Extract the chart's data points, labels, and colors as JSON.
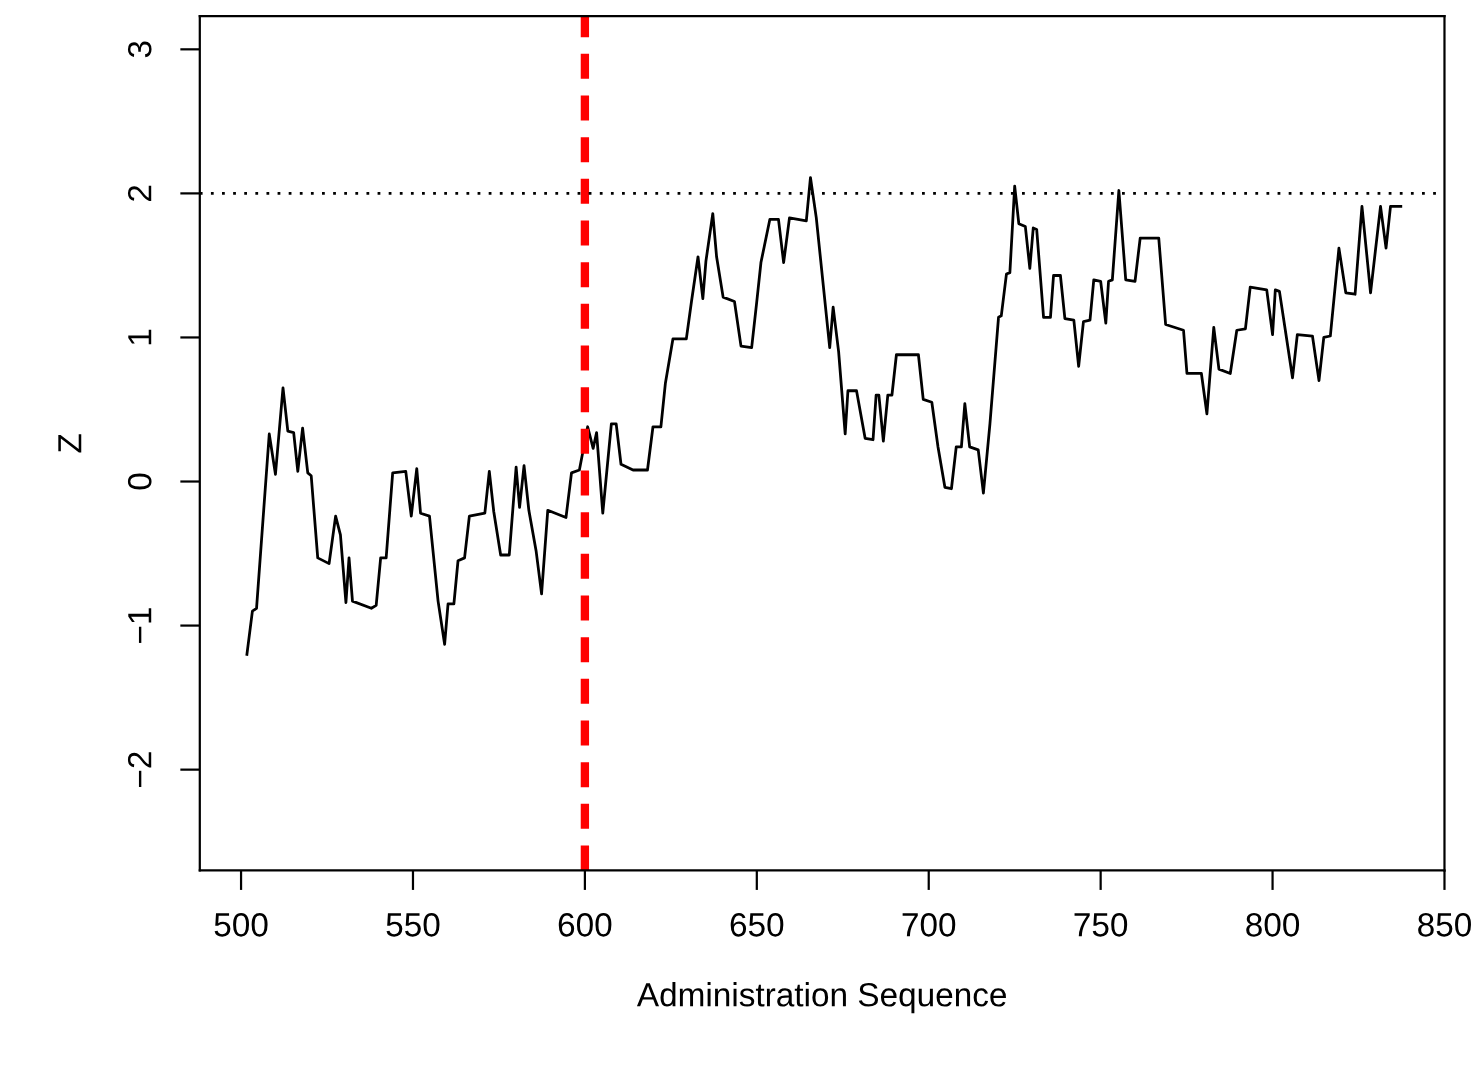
{
  "chart_data": {
    "type": "line",
    "xlabel": "Administration Sequence",
    "ylabel": "Z",
    "xlim": [
      488,
      850
    ],
    "ylim": [
      -2.7,
      3.23
    ],
    "xticks": [
      500,
      550,
      600,
      650,
      700,
      750,
      800,
      850
    ],
    "yticks": [
      {
        "value": -2,
        "label": "−2"
      },
      {
        "value": -1,
        "label": "−1"
      },
      0,
      1,
      2,
      3
    ],
    "grid": false,
    "legend": false,
    "marker": "none",
    "line_style": "solid",
    "ref_lines": [
      {
        "axis": "x",
        "value": 600,
        "label": null,
        "color": "#ff0000",
        "line_style": "dashed"
      },
      {
        "axis": "y",
        "value": 2,
        "label": null,
        "color": "#000000",
        "line_style": "dotted"
      }
    ],
    "series": [
      {
        "color": "#000000",
        "x": [
          501.7,
          503.3,
          504.5,
          508.2,
          510,
          512.2,
          513.6,
          515.3,
          516.5,
          517.9,
          519.4,
          520.4,
          522.3,
          525.6,
          527.5,
          528.9,
          530.5,
          531.4,
          532.4,
          537.9,
          539.3,
          540.6,
          542.2,
          544.1,
          547.9,
          549.5,
          551.1,
          552.2,
          554.8,
          557.3,
          559.2,
          560.2,
          561.9,
          563.1,
          565,
          566.4,
          570.9,
          572.2,
          573.5,
          575.5,
          578,
          580,
          581,
          582.3,
          583.7,
          585.8,
          587.4,
          589.2,
          594.5,
          596.1,
          598.4,
          600.8,
          602.4,
          603.4,
          605.2,
          607.7,
          609.1,
          610.5,
          614,
          618.2,
          619.8,
          622.1,
          623.4,
          625.6,
          629.5,
          631,
          632.9,
          634.3,
          635.2,
          637.2,
          638.3,
          640.2,
          643.5,
          645.4,
          648.5,
          649.9,
          651.2,
          653.8,
          656.3,
          657.8,
          659.5,
          664.4,
          665.6,
          667.3,
          669.9,
          671.2,
          672.2,
          673.8,
          675.7,
          676.5,
          679,
          681.5,
          683.8,
          684.7,
          685.5,
          686.8,
          688.1,
          689.3,
          690.6,
          697,
          698.4,
          700.9,
          702.7,
          704.7,
          706.6,
          708,
          709.5,
          710.5,
          711.9,
          714.4,
          715.9,
          717.8,
          720.3,
          721.1,
          722.6,
          723.6,
          725,
          726.2,
          728.1,
          729.4,
          730.4,
          731.4,
          733.4,
          735.4,
          736.3,
          738.3,
          739.6,
          742.2,
          743.6,
          745,
          746.9,
          748,
          750,
          751.5,
          752.3,
          753.4,
          755.3,
          757.3,
          760,
          761.5,
          766.9,
          768.9,
          774.1,
          775.1,
          779.3,
          780.9,
          782.9,
          784.4,
          787.7,
          789.6,
          792.1,
          793.5,
          798.3,
          800,
          800.8,
          802,
          803.9,
          805.8,
          807.2,
          811.6,
          813.5,
          814.9,
          816.8,
          819.3,
          821.3,
          824,
          826,
          828.5,
          829.9,
          831.4,
          833,
          834.3,
          837.3
        ],
        "values": [
          -1.2,
          -0.9,
          -0.88,
          0.33,
          0.05,
          0.65,
          0.35,
          0.34,
          0.07,
          0.37,
          0.06,
          0.04,
          -0.53,
          -0.57,
          -0.24,
          -0.37,
          -0.84,
          -0.53,
          -0.83,
          -0.88,
          -0.86,
          -0.53,
          -0.53,
          0.06,
          0.07,
          -0.24,
          0.09,
          -0.22,
          -0.24,
          -0.83,
          -1.13,
          -0.85,
          -0.85,
          -0.55,
          -0.53,
          -0.24,
          -0.22,
          0.07,
          -0.21,
          -0.51,
          -0.51,
          0.1,
          -0.18,
          0.11,
          -0.2,
          -0.48,
          -0.78,
          -0.2,
          -0.25,
          0.06,
          0.08,
          0.38,
          0.23,
          0.34,
          -0.22,
          0.4,
          0.4,
          0.12,
          0.08,
          0.08,
          0.38,
          0.38,
          0.68,
          0.99,
          0.99,
          1.25,
          1.56,
          1.27,
          1.53,
          1.86,
          1.56,
          1.28,
          1.25,
          0.94,
          0.93,
          1.23,
          1.52,
          1.82,
          1.82,
          1.52,
          1.83,
          1.81,
          2.11,
          1.83,
          1.23,
          0.93,
          1.21,
          0.9,
          0.33,
          0.63,
          0.63,
          0.3,
          0.29,
          0.6,
          0.6,
          0.28,
          0.6,
          0.6,
          0.88,
          0.88,
          0.57,
          0.55,
          0.24,
          -0.04,
          -0.05,
          0.24,
          0.24,
          0.54,
          0.24,
          0.22,
          -0.08,
          0.4,
          1.14,
          1.15,
          1.44,
          1.45,
          2.05,
          1.79,
          1.77,
          1.48,
          1.76,
          1.75,
          1.14,
          1.14,
          1.43,
          1.43,
          1.13,
          1.12,
          0.8,
          1.11,
          1.12,
          1.4,
          1.39,
          1.1,
          1.39,
          1.4,
          2.02,
          1.4,
          1.39,
          1.69,
          1.69,
          1.09,
          1.05,
          0.75,
          0.75,
          0.47,
          1.07,
          0.78,
          0.75,
          1.05,
          1.06,
          1.35,
          1.33,
          1.02,
          1.33,
          1.32,
          1.02,
          0.72,
          1.02,
          1.01,
          0.7,
          1.0,
          1.01,
          1.62,
          1.31,
          1.3,
          1.91,
          1.31,
          1.6,
          1.91,
          1.62,
          1.91,
          1.91
        ]
      }
    ]
  }
}
